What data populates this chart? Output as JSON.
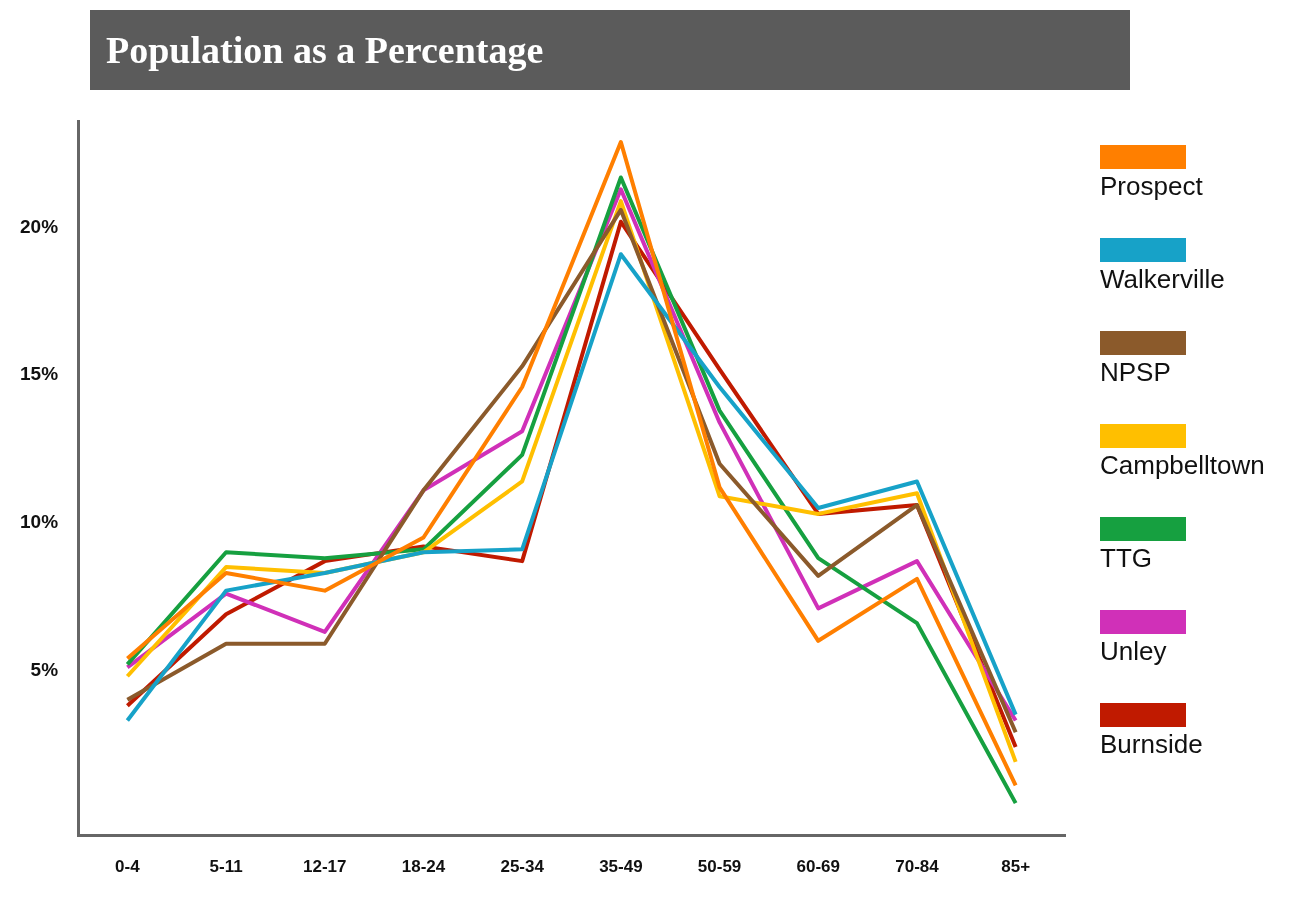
{
  "chart_data": {
    "type": "line",
    "title": "Population as a Percentage",
    "categories": [
      "0-4",
      "5-11",
      "12-17",
      "18-24",
      "25-34",
      "35-49",
      "50-59",
      "60-69",
      "70-84",
      "85+"
    ],
    "series": [
      {
        "name": "Prospect",
        "color": "#ff7f00",
        "values": [
          5.4,
          8.3,
          7.7,
          9.5,
          14.6,
          22.9,
          11.2,
          6.0,
          8.1,
          1.1
        ]
      },
      {
        "name": "Walkerville",
        "color": "#17a2c8",
        "values": [
          3.3,
          7.7,
          8.3,
          9.0,
          9.1,
          19.1,
          14.6,
          10.5,
          11.4,
          3.5
        ]
      },
      {
        "name": "NPSP",
        "color": "#8b5a2b",
        "values": [
          4.0,
          5.9,
          5.9,
          11.1,
          15.3,
          20.6,
          12.0,
          8.2,
          10.6,
          2.9
        ]
      },
      {
        "name": "Campbelltown",
        "color": "#ffbf00",
        "values": [
          4.8,
          8.5,
          8.3,
          9.0,
          11.4,
          20.9,
          10.9,
          10.3,
          11.0,
          1.9
        ]
      },
      {
        "name": "TTG",
        "color": "#16a040",
        "values": [
          5.2,
          9.0,
          8.8,
          9.1,
          12.3,
          21.7,
          13.8,
          8.8,
          6.6,
          0.5
        ]
      },
      {
        "name": "Unley",
        "color": "#d030b8",
        "values": [
          5.1,
          7.6,
          6.3,
          11.1,
          13.1,
          21.3,
          13.4,
          7.1,
          8.7,
          3.3
        ]
      },
      {
        "name": "Burnside",
        "color": "#c01a00",
        "values": [
          3.8,
          6.9,
          8.7,
          9.2,
          8.7,
          20.2,
          15.2,
          10.3,
          10.6,
          2.4
        ]
      }
    ],
    "ylim": [
      -0.6,
      23.6
    ],
    "yticks": [
      {
        "value": 5,
        "label": "5%"
      },
      {
        "value": 10,
        "label": "10%"
      },
      {
        "value": 15,
        "label": "15%"
      },
      {
        "value": 20,
        "label": "20%"
      }
    ],
    "grid": false,
    "legend": "right",
    "marker": "none",
    "line_style": "solid"
  }
}
